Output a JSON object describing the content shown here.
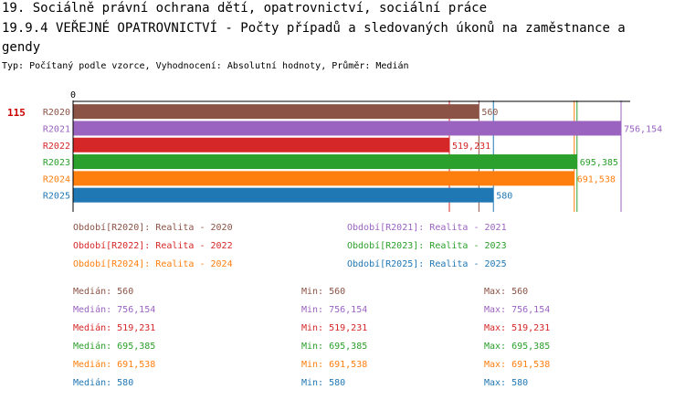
{
  "header": {
    "title_line1": "19. Sociálně právní ochrana dětí, opatrovnictví, sociální práce",
    "title_line2": "19.9.4 VEŘEJNÉ OPATROVNICTVÍ - Počty případů a sledovaných úkonů na zaměstnance a",
    "title_line3": "gendy",
    "subtitle": "Typ: Počítaný podle vzorce, Vyhodnocení: Absolutní hodnoty, Průměr: Medián"
  },
  "chart_data": {
    "type": "bar",
    "orientation": "horizontal",
    "title": "19.9.4 VEŘEJNÉ OPATROVNICTVÍ - Počty případů a sledovaných úkonů na zaměstnance agendy",
    "axis_zero_label": "0",
    "row_marker": "115",
    "xlim": [
      0,
      790
    ],
    "categories": [
      "R2020",
      "R2021",
      "R2022",
      "R2023",
      "R2024",
      "R2025"
    ],
    "values": [
      560,
      756.154,
      519.231,
      695.385,
      691.538,
      580
    ],
    "value_labels": [
      "560",
      "756,154",
      "519,231",
      "695,385",
      "691,538",
      "580"
    ],
    "colors": [
      "#8b5346",
      "#9a63c0",
      "#d62728",
      "#2ca02c",
      "#ff7f0e",
      "#1f77b4"
    ],
    "legend": [
      "Období[R2020]: Realita - 2020",
      "Období[R2021]: Realita - 2021",
      "Období[R2022]: Realita - 2022",
      "Období[R2023]: Realita - 2023",
      "Období[R2024]: Realita - 2024",
      "Období[R2025]: Realita - 2025"
    ],
    "stats": [
      {
        "median": "Medián: 560",
        "min": "Min: 560",
        "max": "Max: 560"
      },
      {
        "median": "Medián: 756,154",
        "min": "Min: 756,154",
        "max": "Max: 756,154"
      },
      {
        "median": "Medián: 519,231",
        "min": "Min: 519,231",
        "max": "Max: 519,231"
      },
      {
        "median": "Medián: 695,385",
        "min": "Min: 695,385",
        "max": "Max: 695,385"
      },
      {
        "median": "Medián: 691,538",
        "min": "Min: 691,538",
        "max": "Max: 691,538"
      },
      {
        "median": "Medián: 580",
        "min": "Min: 580",
        "max": "Max: 580"
      }
    ]
  }
}
